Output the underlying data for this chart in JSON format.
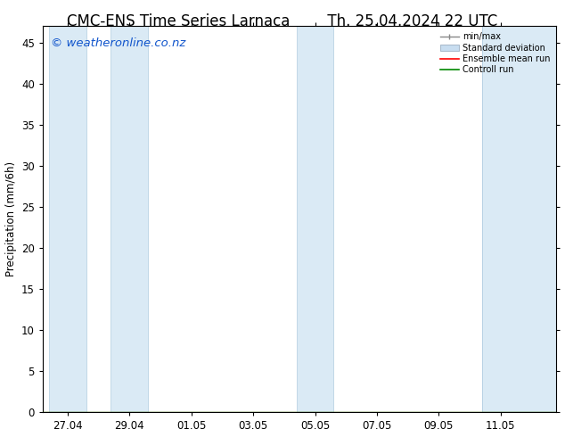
{
  "title_left": "CMC-ENS Time Series Larnaca",
  "title_right": "Th. 25.04.2024 22 UTC",
  "ylabel": "Precipitation (mm/6h)",
  "ylim": [
    0,
    47
  ],
  "yticks": [
    0,
    5,
    10,
    15,
    20,
    25,
    30,
    35,
    40,
    45
  ],
  "background_color": "#ffffff",
  "plot_bg_color": "#ffffff",
  "watermark": "© weatheronline.co.nz",
  "watermark_color": "#1155cc",
  "legend_entries": [
    "min/max",
    "Standard deviation",
    "Ensemble mean run",
    "Controll run"
  ],
  "legend_colors_line": [
    "#888888",
    "#bbccdd",
    "#ff0000",
    "#008800"
  ],
  "shade_color": "#daeaf5",
  "shade_border_color": "#b0cce0",
  "shaded_bands": [
    [
      26.4,
      27.6
    ],
    [
      28.4,
      29.6
    ],
    [
      34.4,
      35.6
    ],
    [
      40.4,
      41.6
    ]
  ],
  "xticklabels": [
    "27.04",
    "29.04",
    "01.05",
    "03.05",
    "05.05",
    "07.05",
    "09.05",
    "11.05"
  ],
  "xtick_positions": [
    27,
    29,
    31,
    33,
    35,
    37,
    39,
    41
  ],
  "xmin": 26.2,
  "xmax": 42.8,
  "title_fontsize": 12,
  "axis_fontsize": 8.5,
  "watermark_fontsize": 9.5
}
